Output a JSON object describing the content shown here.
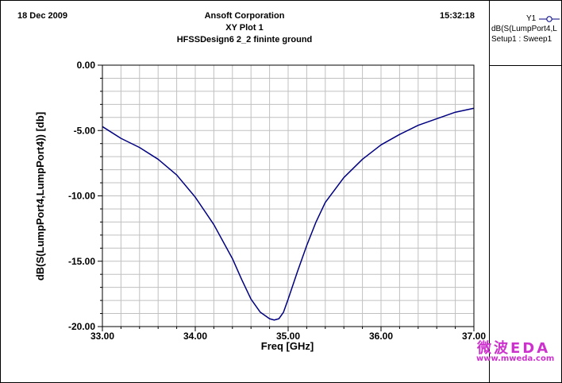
{
  "header": {
    "date": "18 Dec 2009",
    "company": "Ansoft Corporation",
    "time": "15:32:18"
  },
  "legend": {
    "axis_tag": "Y1",
    "trace_label": "dB(S(LumpPort4,L",
    "setup_label": "Setup1 : Sweep1",
    "trace_color": "#000080"
  },
  "watermark": {
    "logo": "微波EDA",
    "url": "www.mweda.com",
    "color": "#cc33cc"
  },
  "chart_data": {
    "type": "line",
    "title": "XY Plot 1",
    "subtitle": "HFSSDesign6 2_2 fininte ground",
    "xlabel": "Freq [GHz]",
    "ylabel": "dB(S(LumpPort4,LumpPort4)) [db]",
    "xlim": [
      33.0,
      37.0
    ],
    "ylim": [
      -20.0,
      0.0
    ],
    "x_ticks": [
      "33.00",
      "34.00",
      "35.00",
      "36.00",
      "37.00"
    ],
    "y_ticks": [
      "0.00",
      "-5.00",
      "-10.00",
      "-15.00",
      "-20.00"
    ],
    "grid": true,
    "series": [
      {
        "color": "#000080",
        "x": [
          33.0,
          33.2,
          33.4,
          33.6,
          33.8,
          34.0,
          34.2,
          34.4,
          34.5,
          34.6,
          34.7,
          34.8,
          34.85,
          34.9,
          34.95,
          35.0,
          35.1,
          35.2,
          35.3,
          35.4,
          35.6,
          35.8,
          36.0,
          36.2,
          36.4,
          36.6,
          36.8,
          37.0
        ],
        "y": [
          -4.7,
          -5.6,
          -6.3,
          -7.2,
          -8.4,
          -10.1,
          -12.2,
          -14.8,
          -16.4,
          -17.9,
          -18.9,
          -19.4,
          -19.5,
          -19.4,
          -18.9,
          -17.9,
          -15.8,
          -13.8,
          -12.0,
          -10.5,
          -8.6,
          -7.2,
          -6.1,
          -5.3,
          -4.6,
          -4.1,
          -3.6,
          -3.3
        ]
      }
    ]
  }
}
